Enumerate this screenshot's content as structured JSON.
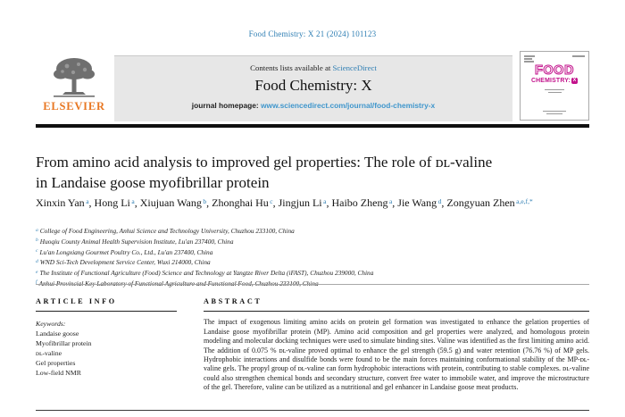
{
  "colors": {
    "link_blue": "#2e7eb3",
    "url_blue": "#3f96cc",
    "elsevier_orange": "#e87722",
    "cover_magenta": "#c2128b",
    "band_gray": "#e7e7e7"
  },
  "masthead": {
    "citation": "Food Chemistry: X 21 (2024) 101123",
    "contents_label": "Contents lists available at",
    "sciencedirect": "ScienceDirect",
    "journal_title": "Food Chemistry: X",
    "homepage_label": "journal homepage:",
    "homepage_url": "www.sciencedirect.com/journal/food-chemistry-x",
    "publisher": "ELSEVIER",
    "cover_title_top": "FOOD",
    "cover_title_bottom": "CHEMISTRY:",
    "cover_badge": "X"
  },
  "article": {
    "title_lines": [
      "From amino acid analysis to improved gel properties: The role of ᴅʟ-valine",
      "in Landaise goose myofibrillar protein"
    ],
    "authors": [
      {
        "name": "Xinxin Yan",
        "sup": "a"
      },
      {
        "name": "Hong Li",
        "sup": "a"
      },
      {
        "name": "Xiujuan Wang",
        "sup": "b"
      },
      {
        "name": "Zhonghai Hu",
        "sup": "c"
      },
      {
        "name": "Jingjun Li",
        "sup": "a"
      },
      {
        "name": "Haibo Zheng",
        "sup": "a"
      },
      {
        "name": "Jie Wang",
        "sup": "d"
      },
      {
        "name": "Zongyuan Zhen",
        "sup": "a,e,f,*"
      }
    ],
    "affiliations": [
      {
        "sup": "a",
        "text": "College of Food Engineering, Anhui Science and Technology University, Chuzhou 233100, China"
      },
      {
        "sup": "b",
        "text": "Huoqiu County Animal Health Supervision Institute, Lu'an 237400, China"
      },
      {
        "sup": "c",
        "text": "Lu'an Longxiang Gourmet Poultry Co., Ltd., Lu'an 237400, China"
      },
      {
        "sup": "d",
        "text": "WND Sci-Tech Development Service Center, Wuxi 214000, China"
      },
      {
        "sup": "e",
        "text": "The Institute of Functional Agriculture (Food) Science and Technology at Yangtze River Delta (iFAST), Chuzhou 239000, China"
      },
      {
        "sup": "f",
        "text": "Anhui Provincial Key Laboratory of Functional Agriculture and Functional Food, Chuzhou 233100, China"
      }
    ]
  },
  "article_info": {
    "heading": "ARTICLE INFO",
    "keywords_label": "Keywords:",
    "keywords": [
      "Landaise goose",
      "Myofibrillar protein",
      "ᴅʟ-valine",
      "Gel properties",
      "Low-field NMR"
    ]
  },
  "abstract": {
    "heading": "ABSTRACT",
    "text": "The impact of exogenous limiting amino acids on protein gel formation was investigated to enhance the gelation properties of Landaise goose myofibrillar protein (MP). Amino acid composition and gel properties were analyzed, and homologous protein modeling and molecular docking techniques were used to simulate binding sites. Valine was identified as the first limiting amino acid. The addition of 0.075 % ᴅʟ-valine proved optimal to enhance the gel strength (59.5 g) and water retention (76.76 %) of MP gels. Hydrophobic interactions and disulfide bonds were found to be the main forces maintaining conformational stability of the MP-ᴅʟ-valine gels. The propyl group of ᴅʟ-valine can form hydrophobic interactions with protein, contributing to stable complexes. ᴅʟ-valine could also strengthen chemical bonds and secondary structure, convert free water to immobile water, and improve the microstructure of the gel. Therefore, valine can be utilized as a nutritional and gel enhancer in Landaise goose meat products."
  }
}
